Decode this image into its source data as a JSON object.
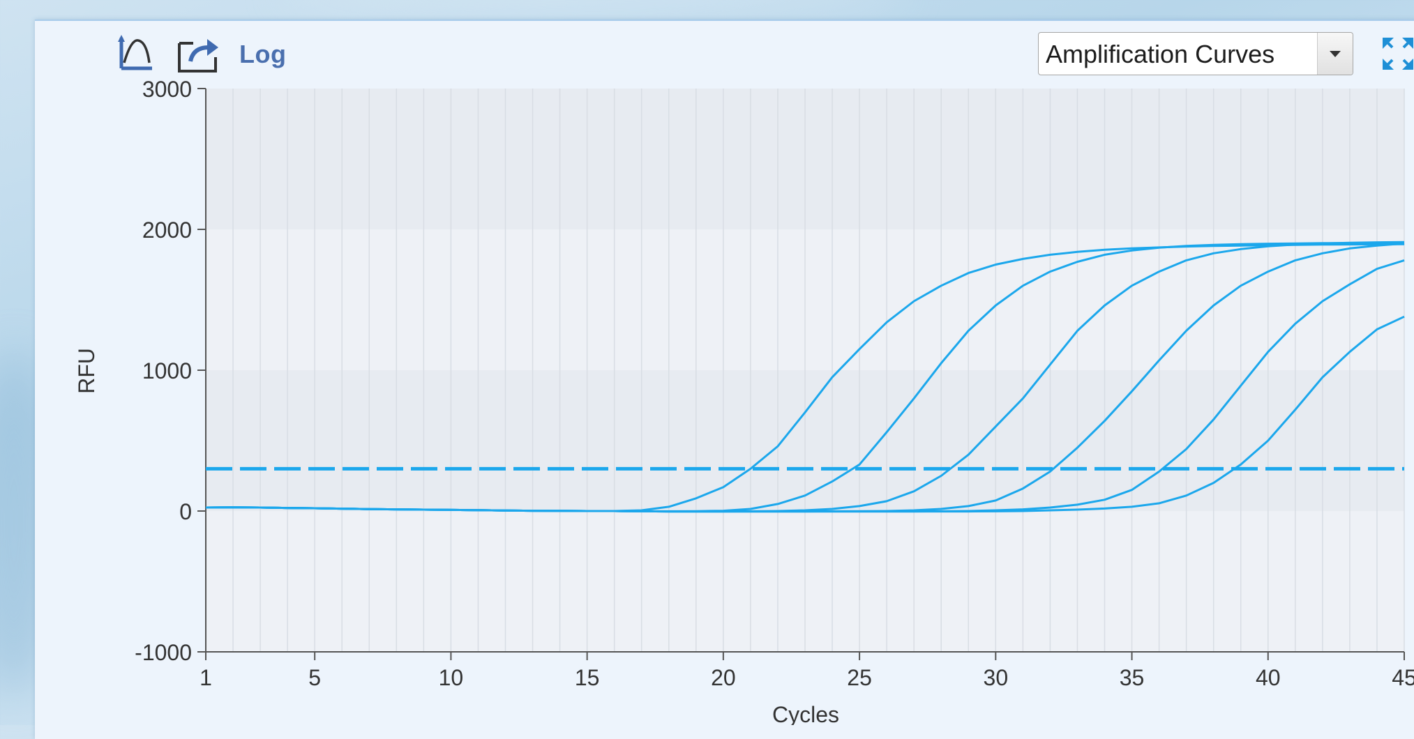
{
  "toolbar": {
    "log_label": "Log",
    "curve_icon": "curve-icon",
    "export_icon": "export-icon",
    "expand_icon": "expand-icon",
    "view_select": {
      "selected": "Amplification Curves"
    }
  },
  "colors": {
    "curve": "#1ba7ec",
    "threshold": "#1ba7ec",
    "plot_band_light": "#eef1f6",
    "plot_band_dark": "#e7ebf1",
    "grid": "#d8dde4",
    "axis": "#555555"
  },
  "chart_data": {
    "type": "line",
    "xlabel": "Cycles",
    "ylabel": "RFU",
    "xlim": [
      1,
      45
    ],
    "ylim": [
      -1000,
      3000
    ],
    "x_ticks": [
      "1",
      "5",
      "10",
      "15",
      "20",
      "25",
      "30",
      "35",
      "40",
      "45"
    ],
    "y_ticks": [
      "3000",
      "2000",
      "1000",
      "0",
      "-1000"
    ],
    "grid": "vertical lines every cycle; alternating horizontal bands",
    "threshold": 300,
    "x": [
      1,
      2,
      3,
      4,
      5,
      6,
      7,
      8,
      9,
      10,
      11,
      12,
      13,
      14,
      15,
      16,
      17,
      18,
      19,
      20,
      21,
      22,
      23,
      24,
      25,
      26,
      27,
      28,
      29,
      30,
      31,
      32,
      33,
      34,
      35,
      36,
      37,
      38,
      39,
      40,
      41,
      42,
      43,
      44,
      45
    ],
    "series": [
      {
        "values": [
          25,
          26,
          25,
          22,
          20,
          17,
          14,
          12,
          10,
          8,
          6,
          4,
          2,
          1,
          0,
          0,
          5,
          30,
          90,
          170,
          300,
          460,
          700,
          950,
          1150,
          1340,
          1490,
          1600,
          1690,
          1750,
          1790,
          1820,
          1840,
          1855,
          1865,
          1872,
          1878,
          1882,
          1885,
          1888,
          1890,
          1892,
          1893,
          1894,
          1895
        ]
      },
      {
        "values": [
          25,
          26,
          25,
          22,
          20,
          17,
          14,
          12,
          10,
          8,
          6,
          4,
          2,
          1,
          0,
          0,
          -2,
          -2,
          -1,
          2,
          15,
          50,
          110,
          210,
          330,
          560,
          800,
          1050,
          1280,
          1460,
          1600,
          1700,
          1770,
          1820,
          1850,
          1870,
          1882,
          1890,
          1895,
          1898,
          1900,
          1902,
          1903,
          1904,
          1905
        ]
      },
      {
        "values": [
          25,
          26,
          25,
          22,
          20,
          17,
          14,
          12,
          10,
          8,
          6,
          4,
          2,
          1,
          0,
          0,
          -2,
          -3,
          -3,
          -3,
          -2,
          0,
          5,
          15,
          35,
          70,
          140,
          250,
          400,
          600,
          800,
          1040,
          1280,
          1460,
          1600,
          1700,
          1780,
          1830,
          1860,
          1880,
          1892,
          1900,
          1905,
          1908,
          1910
        ]
      },
      {
        "values": [
          25,
          26,
          25,
          22,
          20,
          17,
          14,
          12,
          10,
          8,
          6,
          4,
          2,
          1,
          0,
          0,
          -2,
          -3,
          -3,
          -3,
          -3,
          -3,
          -3,
          -2,
          -1,
          0,
          5,
          15,
          35,
          75,
          160,
          280,
          450,
          640,
          850,
          1070,
          1280,
          1460,
          1600,
          1700,
          1780,
          1830,
          1865,
          1885,
          1900
        ]
      },
      {
        "values": [
          25,
          26,
          25,
          22,
          20,
          17,
          14,
          12,
          10,
          8,
          6,
          4,
          2,
          1,
          0,
          0,
          -2,
          -3,
          -3,
          -3,
          -3,
          -3,
          -3,
          -3,
          -3,
          -3,
          -3,
          -2,
          0,
          5,
          12,
          25,
          45,
          80,
          150,
          280,
          440,
          650,
          890,
          1130,
          1330,
          1490,
          1610,
          1720,
          1780
        ]
      },
      {
        "values": [
          25,
          26,
          25,
          22,
          20,
          17,
          14,
          12,
          10,
          8,
          6,
          4,
          2,
          1,
          0,
          0,
          -2,
          -3,
          -3,
          -3,
          -3,
          -3,
          -3,
          -3,
          -3,
          -3,
          -3,
          -3,
          -3,
          -2,
          0,
          5,
          10,
          18,
          30,
          55,
          110,
          200,
          330,
          500,
          720,
          950,
          1130,
          1290,
          1380
        ]
      }
    ]
  }
}
